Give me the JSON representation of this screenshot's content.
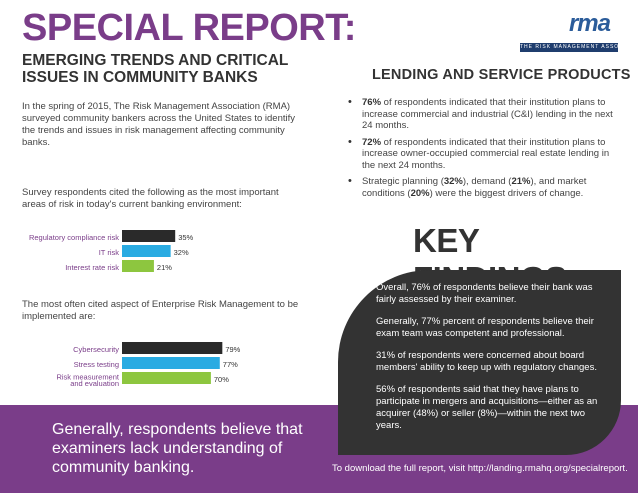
{
  "header": {
    "title": "SPECIAL REPORT:",
    "subtitle": "EMERGING TRENDS AND CRITICAL ISSUES IN COMMUNITY BANKS"
  },
  "logo": {
    "mark": "rma",
    "tagline": "THE RISK MANAGEMENT ASSOCIATION"
  },
  "intro": "In the spring of 2015, The Risk Management Association (RMA) surveyed community bankers across the United States to identify the trends and issues in risk management affecting community banks.",
  "survey_text": "Survey respondents cited the following as the most important areas of risk in today's current banking environment:",
  "erm_text": "The most often cited aspect of Enterprise Risk Management to be implemented are:",
  "colors": {
    "purple": "#7a3d89",
    "orange": "#f5a623",
    "blue": "#29abe2",
    "green": "#8dc63f",
    "dark": "#333333",
    "bar1": "#2a2a2a"
  },
  "chart_data": [
    {
      "type": "bar",
      "orientation": "horizontal",
      "title": "",
      "categories": [
        "Regulatory compliance risk",
        "IT risk",
        "Interest rate risk"
      ],
      "values": [
        35,
        32,
        21
      ],
      "value_labels": [
        "35%",
        "32%",
        "21%"
      ],
      "xlim": [
        0,
        100
      ],
      "xlabel": "",
      "ylabel": ""
    },
    {
      "type": "bar",
      "orientation": "horizontal",
      "title": "",
      "categories": [
        "Cybersecurity",
        "Stress testing",
        "Risk measurement and evaluation"
      ],
      "category_lines": [
        [
          "Cybersecurity"
        ],
        [
          "Stress testing"
        ],
        [
          "Risk measurement",
          "and evaluation"
        ]
      ],
      "values": [
        79,
        77,
        70
      ],
      "value_labels": [
        "79%",
        "77%",
        "70%"
      ],
      "xlim": [
        0,
        100
      ],
      "xlabel": "",
      "ylabel": ""
    }
  ],
  "lending": {
    "title": "LENDING AND SERVICE PRODUCTS",
    "bullets": [
      {
        "bold": "76%",
        "text": " of respondents indicated that their institution plans to increase commercial and industrial (C&I) lending in the next 24 months."
      },
      {
        "bold": "72%",
        "text": " of respondents indicated that their institution plans to increase owner-occupied commercial real estate lending in the next 24 months."
      },
      {
        "text_a": "Strategic planning (",
        "bold_a": "32%",
        "text_b": "), demand (",
        "bold_b": "21%",
        "text_c": "), and market conditions (",
        "bold_c": "20%",
        "text_d": ") were the biggest drivers of change."
      }
    ]
  },
  "key_findings": {
    "title": "KEY FINDINGS",
    "items": [
      "Overall, 76% of respondents believe their bank was fairly assessed by their examiner.",
      "Generally, 77% percent of respondents believe their exam team was competent and professional.",
      "31% of respondents were concerned about board members' ability to keep up with regulatory changes.",
      "56% of respondents said that they have plans to participate in mergers and acquisitions—either as an acquirer (48%) or seller (8%)—within the next two years."
    ]
  },
  "footer": {
    "statement": "Generally, respondents believe that examiners lack understanding of community banking.",
    "download": "To download the full report, visit http://landing.rmahq.org/specialreport."
  }
}
